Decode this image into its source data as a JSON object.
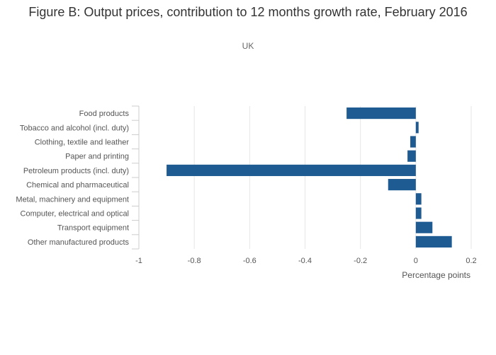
{
  "title": "Figure B: Output prices, contribution to 12 months growth rate, February 2016",
  "subtitle": "UK",
  "colors": {
    "bar": "#1f5b93",
    "grid": "#e6e6e6",
    "axis": "#cccccc"
  },
  "chart_data": {
    "type": "bar",
    "orientation": "horizontal",
    "categories": [
      "Food products",
      "Tobacco and alcohol (incl. duty)",
      "Clothing, textile and leather",
      "Paper and printing",
      "Petroleum products (incl. duty)",
      "Chemical and pharmaceutical",
      "Metal, machinery and equipment",
      "Computer, electrical and optical",
      "Transport equipment",
      "Other manufactured products"
    ],
    "values": [
      -0.25,
      0.01,
      -0.02,
      -0.03,
      -0.9,
      -0.1,
      0.02,
      0.02,
      0.06,
      0.13
    ],
    "xlabel": "Percentage points",
    "ylabel": "",
    "xlim": [
      -1,
      0.2
    ],
    "xticks": [
      -1,
      -0.8,
      -0.6,
      -0.4,
      -0.2,
      0,
      0.2
    ],
    "xtick_labels": [
      "-1",
      "-0.8",
      "-0.6",
      "-0.4",
      "-0.2",
      "0",
      "0.2"
    ],
    "grid": true
  }
}
